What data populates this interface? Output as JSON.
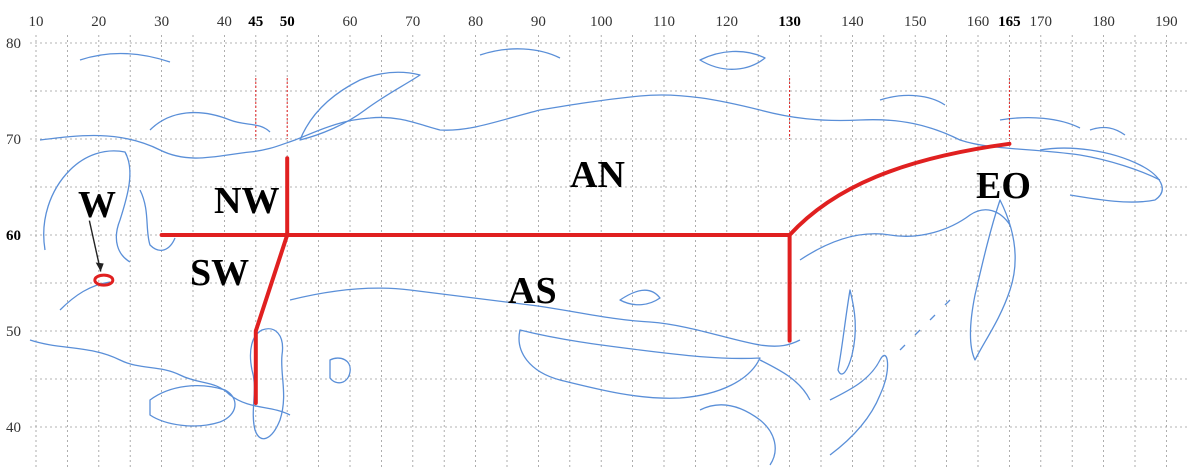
{
  "map": {
    "colors": {
      "coastline": "#5a8fd8",
      "boundary": "#e02020",
      "grid": "#9a9a9a",
      "background": "#ffffff"
    },
    "longitude_ticks": [
      {
        "value": 10,
        "label": "10",
        "bold": false
      },
      {
        "value": 20,
        "label": "20",
        "bold": false
      },
      {
        "value": 30,
        "label": "30",
        "bold": false
      },
      {
        "value": 40,
        "label": "40",
        "bold": false
      },
      {
        "value": 45,
        "label": "45",
        "bold": true
      },
      {
        "value": 50,
        "label": "50",
        "bold": true
      },
      {
        "value": 60,
        "label": "60",
        "bold": false
      },
      {
        "value": 70,
        "label": "70",
        "bold": false
      },
      {
        "value": 80,
        "label": "80",
        "bold": false
      },
      {
        "value": 90,
        "label": "90",
        "bold": false
      },
      {
        "value": 100,
        "label": "100",
        "bold": false
      },
      {
        "value": 110,
        "label": "110",
        "bold": false
      },
      {
        "value": 120,
        "label": "120",
        "bold": false
      },
      {
        "value": 130,
        "label": "130",
        "bold": true
      },
      {
        "value": 140,
        "label": "140",
        "bold": false
      },
      {
        "value": 150,
        "label": "150",
        "bold": false
      },
      {
        "value": 160,
        "label": "160",
        "bold": false
      },
      {
        "value": 165,
        "label": "165",
        "bold": true
      },
      {
        "value": 170,
        "label": "170",
        "bold": false
      },
      {
        "value": 180,
        "label": "180",
        "bold": false
      },
      {
        "value": 190,
        "label": "190",
        "bold": false
      }
    ],
    "latitude_ticks": [
      {
        "value": 80,
        "label": "80",
        "bold": false
      },
      {
        "value": 70,
        "label": "70",
        "bold": false
      },
      {
        "value": 60,
        "label": "60",
        "bold": true
      },
      {
        "value": 50,
        "label": "50",
        "bold": false
      },
      {
        "value": 40,
        "label": "40",
        "bold": false
      }
    ],
    "regions": [
      {
        "id": "W",
        "label": "W"
      },
      {
        "id": "NW",
        "label": "NW"
      },
      {
        "id": "SW",
        "label": "SW"
      },
      {
        "id": "AN",
        "label": "AN"
      },
      {
        "id": "AS",
        "label": "AS"
      },
      {
        "id": "EO",
        "label": "EO"
      }
    ]
  }
}
